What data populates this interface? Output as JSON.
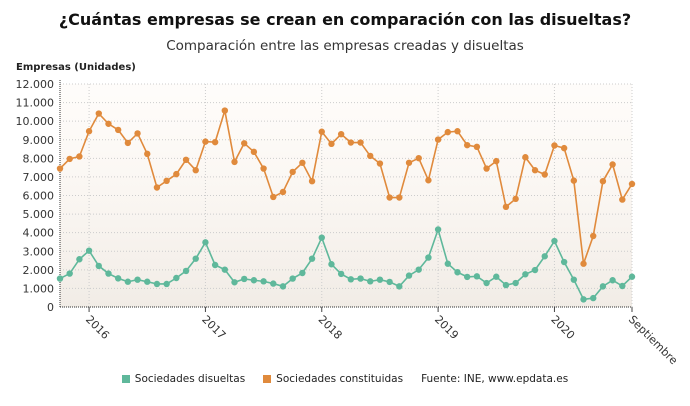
{
  "title": "¿Cuántas empresas se crean en comparación con las disueltas?",
  "subtitle": "Comparación entre las empresas creadas y disueltas",
  "source": "Fuente: INE, www.epdata.es",
  "chart_data": {
    "type": "line",
    "ylabel": "Empresas (Unidades)",
    "ylim": [
      0,
      12000
    ],
    "yticks": [
      "0",
      "1.000",
      "2.000",
      "3.000",
      "4.000",
      "5.000",
      "6.000",
      "7.000",
      "8.000",
      "9.000",
      "10.000",
      "11.000",
      "12.000"
    ],
    "x_start": "2015-10",
    "x_end": "2020-09",
    "frequency": "monthly",
    "xticks": [
      {
        "label": "2016",
        "month": "2016-01"
      },
      {
        "label": "2017",
        "month": "2017-01"
      },
      {
        "label": "2018",
        "month": "2018-01"
      },
      {
        "label": "2019",
        "month": "2019-01"
      },
      {
        "label": "2020",
        "month": "2020-01"
      },
      {
        "label": "Septiembre",
        "month": "2020-09"
      }
    ],
    "grid": true,
    "legend_position": "bottom",
    "series": [
      {
        "name": "Sociedades disueltas",
        "color": "#5fb89b",
        "values": [
          1530,
          1800,
          2570,
          3030,
          2210,
          1800,
          1540,
          1360,
          1470,
          1360,
          1240,
          1240,
          1560,
          1940,
          2600,
          3480,
          2260,
          2010,
          1330,
          1510,
          1440,
          1380,
          1260,
          1110,
          1530,
          1830,
          2600,
          3730,
          2300,
          1780,
          1490,
          1530,
          1380,
          1470,
          1350,
          1110,
          1690,
          2010,
          2660,
          4170,
          2330,
          1870,
          1620,
          1650,
          1290,
          1630,
          1180,
          1290,
          1760,
          1990,
          2730,
          3550,
          2420,
          1470,
          410,
          480,
          1110,
          1440,
          1130,
          1630
        ]
      },
      {
        "name": "Sociedades constituidas",
        "color": "#e08a3c",
        "values": [
          7450,
          7970,
          8100,
          9460,
          10410,
          9860,
          9530,
          8830,
          9340,
          8240,
          6430,
          6790,
          7150,
          7920,
          7360,
          8900,
          8870,
          10570,
          7810,
          8810,
          8350,
          7450,
          5920,
          6190,
          7270,
          7760,
          6770,
          9430,
          8780,
          9300,
          8850,
          8850,
          8130,
          7720,
          5890,
          5890,
          7760,
          8010,
          6820,
          9010,
          9410,
          9460,
          8710,
          8620,
          7450,
          7850,
          5390,
          5820,
          8060,
          7360,
          7130,
          8690,
          8550,
          6800,
          2330,
          3820,
          6770,
          7670,
          5780,
          6620
        ]
      }
    ]
  }
}
